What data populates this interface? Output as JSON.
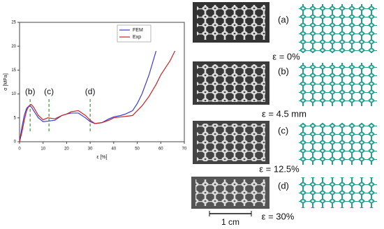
{
  "chart_data": {
    "type": "line",
    "xlabel": "ε [%]",
    "ylabel": "σ [MPa]",
    "xlim": [
      0,
      70
    ],
    "xticks": [
      0,
      10,
      20,
      30,
      40,
      50,
      60,
      70
    ],
    "ylim": [
      0,
      25
    ],
    "yticks": [
      0,
      5,
      10,
      15,
      20,
      25
    ],
    "legend": "top",
    "series": [
      {
        "name": "FEM",
        "color": "#3b3bd0",
        "x": [
          0,
          1,
          2,
          3,
          4,
          5,
          6,
          8,
          10,
          12,
          15,
          18,
          20,
          22,
          25,
          28,
          30,
          32,
          35,
          38,
          40,
          43,
          45,
          48,
          50,
          52,
          55,
          58
        ],
        "values": [
          0,
          3,
          5.5,
          7,
          7.5,
          7.3,
          6.5,
          5,
          4.2,
          4.3,
          4.5,
          5.5,
          5.8,
          6,
          6,
          5,
          4.2,
          3.8,
          4,
          4.8,
          5.2,
          5.5,
          5.8,
          6.5,
          8,
          10,
          14,
          19
        ]
      },
      {
        "name": "Exp",
        "color": "#cc2222",
        "x": [
          0,
          1,
          2,
          3,
          4,
          5,
          6,
          8,
          10,
          12,
          15,
          18,
          20,
          22,
          25,
          28,
          30,
          32,
          35,
          38,
          40,
          43,
          45,
          48,
          50,
          52,
          55,
          58,
          60,
          62,
          64,
          66
        ],
        "values": [
          0,
          2,
          4.5,
          6.5,
          7.5,
          7.8,
          7.2,
          5.5,
          4.6,
          5,
          4.8,
          5.5,
          5.8,
          6.3,
          6.5,
          5.5,
          4.5,
          3.8,
          4,
          4.5,
          5,
          5.2,
          5.3,
          5.5,
          6.5,
          7.5,
          9.5,
          12,
          14,
          15.5,
          17,
          19
        ]
      }
    ],
    "annotations": [
      {
        "label": "(b)",
        "x": 4.5
      },
      {
        "label": "(c)",
        "x": 12.5
      },
      {
        "label": "(d)",
        "x": 30
      }
    ]
  },
  "panels": [
    {
      "label": "(a)",
      "strain": "ε = 0%"
    },
    {
      "label": "(b)",
      "strain": "ε = 4.5 mm"
    },
    {
      "label": "(c)",
      "strain": "ε = 12.5%"
    },
    {
      "label": "(d)",
      "strain": "ε = 30%"
    }
  ],
  "scale_bar": "1 cm"
}
